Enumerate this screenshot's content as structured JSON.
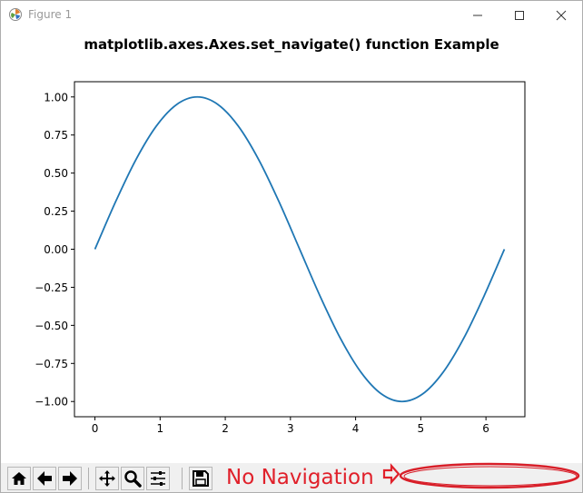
{
  "window": {
    "title": "Figure 1",
    "icons": {
      "app": "matplotlib-icon",
      "minimize": "minimize-icon",
      "maximize": "maximize-icon",
      "close": "close-icon"
    }
  },
  "toolbar": {
    "buttons": [
      {
        "name": "home-button",
        "icon": "home-icon"
      },
      {
        "name": "back-button",
        "icon": "left-arrow-icon"
      },
      {
        "name": "forward-button",
        "icon": "right-arrow-icon"
      },
      {
        "name": "pan-button",
        "icon": "move-icon"
      },
      {
        "name": "zoom-button",
        "icon": "magnifier-icon"
      },
      {
        "name": "configure-subplots-button",
        "icon": "sliders-icon"
      },
      {
        "name": "save-button",
        "icon": "floppy-disk-icon"
      }
    ]
  },
  "annotation": {
    "text": "No Navigation",
    "color": "#e0202a",
    "arrow_icon": "right-arrow-outline-icon"
  },
  "chart_data": {
    "type": "line",
    "title": "matplotlib.axes.Axes.set_navigate() function Example",
    "xlabel": "",
    "ylabel": "",
    "xlim": [
      -0.3141592653589793,
      6.5973445725385655
    ],
    "ylim": [
      -1.1,
      1.1
    ],
    "xticks": [
      0,
      1,
      2,
      3,
      4,
      5,
      6
    ],
    "xtick_labels": [
      "0",
      "1",
      "2",
      "3",
      "4",
      "5",
      "6"
    ],
    "yticks": [
      1.0,
      0.75,
      0.5,
      0.25,
      0.0,
      -0.25,
      -0.5,
      -0.75,
      -1.0
    ],
    "ytick_labels": [
      "1.00",
      "0.75",
      "0.50",
      "0.25",
      "0.00",
      "−0.25",
      "−0.50",
      "−0.75",
      "−1.00"
    ],
    "grid": false,
    "series": [
      {
        "color": "#1f77b4",
        "x": [
          0,
          0.3142,
          0.6283,
          0.9425,
          1.2566,
          1.5708,
          1.885,
          2.1991,
          2.5133,
          2.8274,
          3.1416,
          3.4558,
          3.7699,
          4.0841,
          4.3982,
          4.7124,
          5.0265,
          5.3407,
          5.6549,
          5.969,
          6.2832
        ],
        "y": [
          0,
          0.309,
          0.5878,
          0.809,
          0.9511,
          1.0,
          0.9511,
          0.809,
          0.5878,
          0.309,
          0,
          -0.309,
          -0.5878,
          -0.809,
          -0.9511,
          -1.0,
          -0.9511,
          -0.809,
          -0.5878,
          -0.309,
          0
        ]
      }
    ]
  }
}
